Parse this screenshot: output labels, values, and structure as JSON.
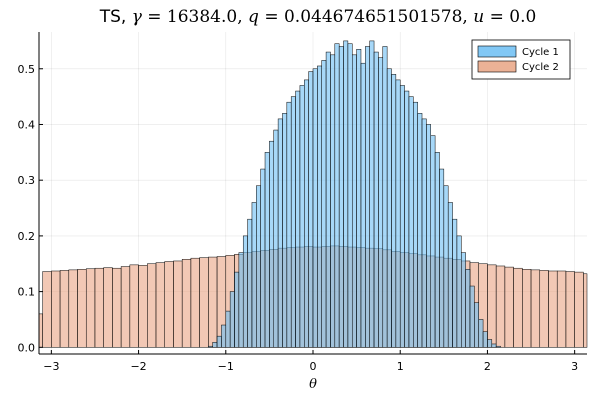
{
  "chart_data": {
    "type": "bar",
    "title": {
      "prefix": "TS, ",
      "parts": [
        {
          "text": "γ",
          "italic": true
        },
        {
          "text": " = 16384.0, ",
          "italic": false
        },
        {
          "text": "q",
          "italic": true
        },
        {
          "text": " = 0.044674651501578, ",
          "italic": false
        },
        {
          "text": "u",
          "italic": true
        },
        {
          "text": " = 0.0",
          "italic": false
        }
      ]
    },
    "xlabel": "θ",
    "ylabel": "",
    "xlim": [
      -3.1416,
      3.1416
    ],
    "ylim": [
      -0.012,
      0.566
    ],
    "xticks": [
      -3,
      -2,
      -1,
      0,
      1,
      2,
      3
    ],
    "yticks": [
      0.0,
      0.1,
      0.2,
      0.3,
      0.4,
      0.5
    ],
    "ytick_labels": [
      "0.0",
      "0.1",
      "0.2",
      "0.3",
      "0.4",
      "0.5"
    ],
    "grid": true,
    "legend_position": "top-right",
    "series": [
      {
        "name": "Cycle 1",
        "color": "#6cbef3",
        "bin_width": 0.05,
        "bin_start": -1.2,
        "values": [
          0.002,
          0.009,
          0.02,
          0.04,
          0.065,
          0.1,
          0.135,
          0.17,
          0.2,
          0.23,
          0.26,
          0.29,
          0.32,
          0.35,
          0.37,
          0.39,
          0.41,
          0.42,
          0.44,
          0.45,
          0.46,
          0.47,
          0.48,
          0.495,
          0.5,
          0.505,
          0.515,
          0.53,
          0.525,
          0.545,
          0.54,
          0.55,
          0.545,
          0.525,
          0.535,
          0.51,
          0.54,
          0.55,
          0.53,
          0.52,
          0.54,
          0.5,
          0.49,
          0.48,
          0.47,
          0.46,
          0.45,
          0.44,
          0.42,
          0.41,
          0.4,
          0.38,
          0.35,
          0.32,
          0.29,
          0.26,
          0.23,
          0.2,
          0.17,
          0.14,
          0.11,
          0.08,
          0.05,
          0.028,
          0.014,
          0.006,
          0.002
        ]
      },
      {
        "name": "Cycle 2",
        "color": "#e9a484",
        "bin_width": 0.1,
        "bin_start": -3.2,
        "values": [
          0.06,
          0.136,
          0.137,
          0.138,
          0.139,
          0.14,
          0.141,
          0.142,
          0.143,
          0.142,
          0.145,
          0.148,
          0.147,
          0.15,
          0.152,
          0.154,
          0.155,
          0.158,
          0.16,
          0.161,
          0.162,
          0.163,
          0.165,
          0.167,
          0.17,
          0.172,
          0.174,
          0.176,
          0.178,
          0.179,
          0.18,
          0.181,
          0.18,
          0.181,
          0.182,
          0.181,
          0.18,
          0.179,
          0.178,
          0.177,
          0.175,
          0.172,
          0.17,
          0.168,
          0.166,
          0.164,
          0.162,
          0.16,
          0.158,
          0.155,
          0.152,
          0.15,
          0.148,
          0.146,
          0.144,
          0.142,
          0.14,
          0.139,
          0.138,
          0.137,
          0.137,
          0.136,
          0.135,
          0.132,
          0.058
        ]
      }
    ]
  }
}
